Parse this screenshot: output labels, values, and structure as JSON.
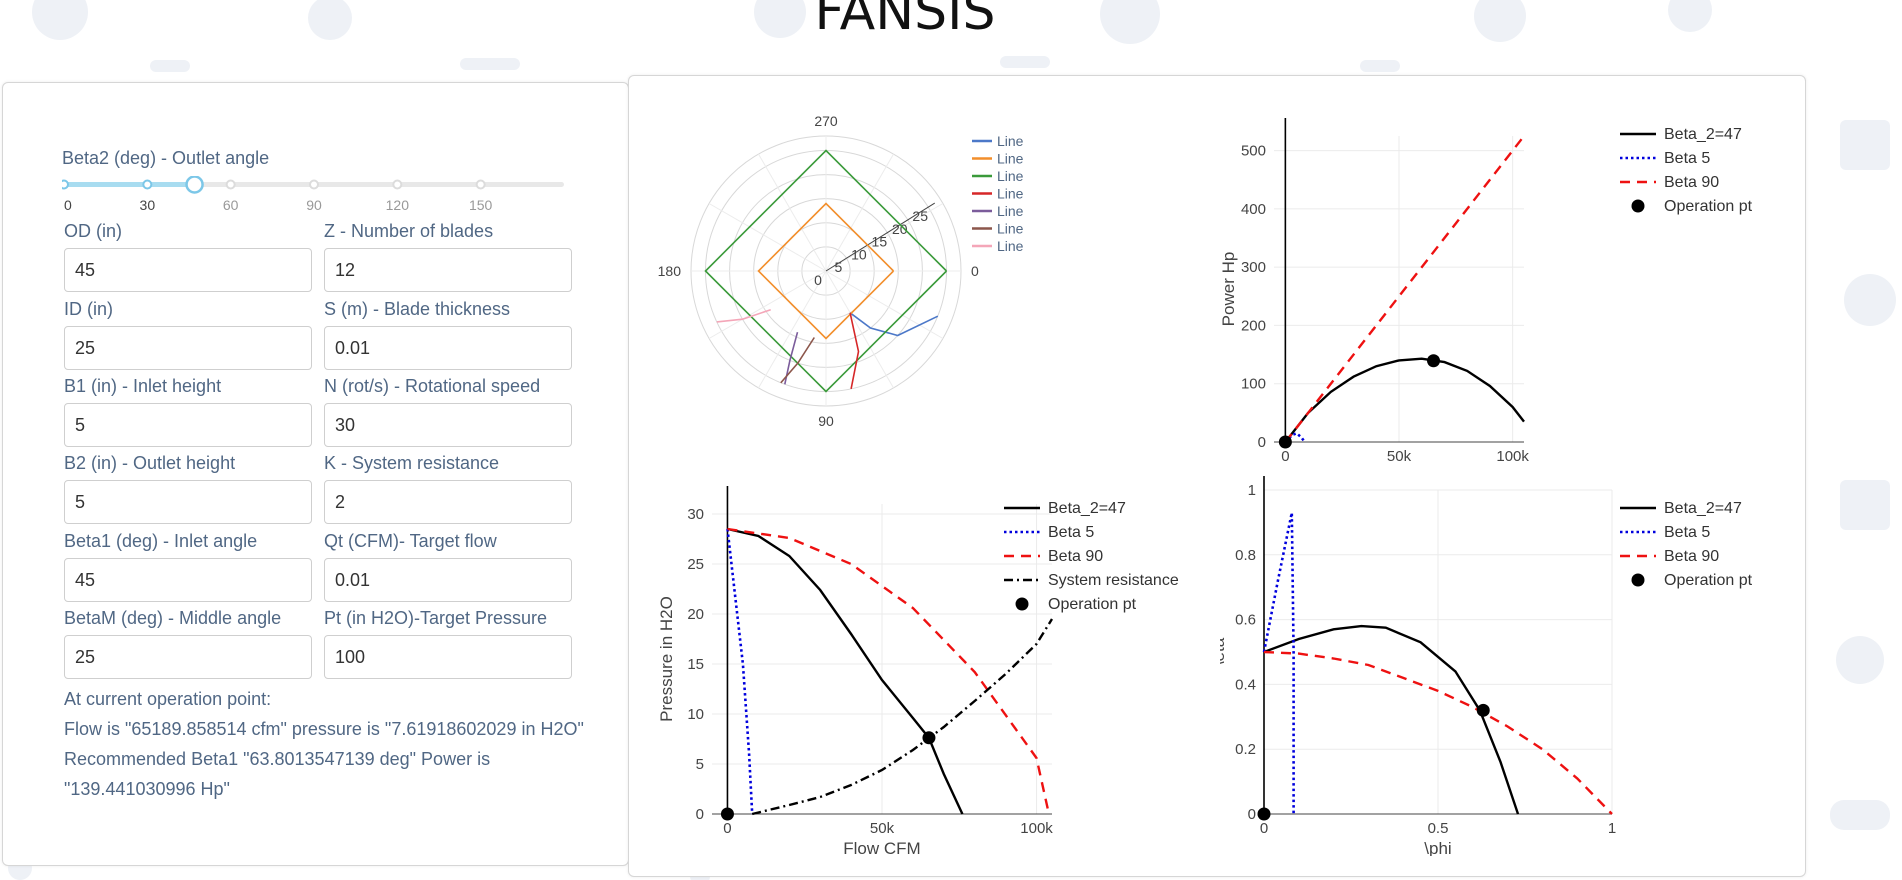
{
  "app": {
    "title": "FANSIS"
  },
  "slider": {
    "label": "Beta2 (deg) - Outlet angle",
    "min": 0,
    "max": 180,
    "value": 47,
    "marks": [
      "0",
      "30",
      "60",
      "90",
      "120",
      "150"
    ],
    "mark_values": [
      0,
      30,
      60,
      90,
      120,
      150
    ]
  },
  "fields": {
    "od": {
      "label": "OD (in)",
      "value": "45"
    },
    "z": {
      "label": "Z - Number of blades",
      "value": "12"
    },
    "id": {
      "label": "ID (in)",
      "value": "25"
    },
    "s": {
      "label": "S (m) - Blade thickness",
      "value": "0.01"
    },
    "b1": {
      "label": "B1 (in) - Inlet height",
      "value": "5"
    },
    "n": {
      "label": "N (rot/s) - Rotational speed",
      "value": "30"
    },
    "b2": {
      "label": "B2 (in) - Outlet height",
      "value": "5"
    },
    "k": {
      "label": "K - System resistance",
      "value": "2"
    },
    "beta1": {
      "label": "Beta1 (deg) - Inlet angle",
      "value": "45"
    },
    "qt": {
      "label": "Qt (CFM)- Target flow",
      "value": "0.01"
    },
    "betam": {
      "label": "BetaM (deg) - Middle angle",
      "value": "25"
    },
    "pt": {
      "label": "Pt (in H2O)-Target Pressure",
      "value": "100"
    }
  },
  "result": {
    "heading": "At current operation point:",
    "text": "Flow is \"65189.858514 cfm\" pressure is \"7.61918602029 in H2O\" Recommended Beta1 \"63.8013547139 deg\" Power is \"139.441030996 Hp\""
  },
  "colors": {
    "label": "#506784",
    "slider": "#a8dcf0",
    "slider_handle": "#7cc7e8",
    "black": "#000000",
    "blue": "#0000dd",
    "red": "#ee1111",
    "polar": [
      "#4c78c8",
      "#f28e2b",
      "#3a9a3a",
      "#d62728",
      "#7b5c9b",
      "#8c564b",
      "#f4a6b8"
    ]
  },
  "chart_data": [
    {
      "type": "polar",
      "angular_ticks": [
        "0",
        "90",
        "180",
        "270"
      ],
      "radial_ticks": [
        "0",
        "5",
        "10",
        "15",
        "20",
        "25"
      ],
      "radial_range": [
        0,
        28
      ],
      "legend": "right",
      "series": [
        {
          "name": "Line",
          "points": [
            [
              10,
              60
            ],
            [
              15,
              52
            ],
            [
              20,
              42
            ],
            [
              25,
              22
            ]
          ]
        },
        {
          "name": "Line",
          "points": [
            [
              14,
              0
            ],
            [
              14,
              90
            ],
            [
              14,
              180
            ],
            [
              14,
              270
            ],
            [
              14,
              360
            ]
          ]
        },
        {
          "name": "Line",
          "points": [
            [
              25,
              0
            ],
            [
              25,
              90
            ],
            [
              25,
              180
            ],
            [
              25,
              270
            ],
            [
              25,
              360
            ]
          ]
        },
        {
          "name": "Line",
          "points": [
            [
              10,
              60
            ],
            [
              18,
              68
            ],
            [
              25,
              78
            ]
          ]
        },
        {
          "name": "Line",
          "points": [
            [
              14,
              115
            ],
            [
              20,
              112
            ],
            [
              25,
              110
            ]
          ]
        },
        {
          "name": "Line",
          "points": [
            [
              14,
              100
            ],
            [
              20,
              107
            ],
            [
              25,
              112
            ]
          ]
        },
        {
          "name": "Line",
          "points": [
            [
              14,
              145
            ],
            [
              20,
              150
            ],
            [
              25,
              155
            ]
          ]
        }
      ]
    },
    {
      "type": "line",
      "xlabel": "",
      "ylabel": "Power Hp",
      "xlim": [
        -5000,
        105000
      ],
      "ylim": [
        0,
        525
      ],
      "x_ticks": [
        0,
        50000,
        100000
      ],
      "x_tick_labels": [
        "0",
        "50k",
        "100k"
      ],
      "y_ticks": [
        0,
        100,
        200,
        300,
        400,
        500
      ],
      "y_tick_labels": [
        "0",
        "100",
        "200",
        "300",
        "400",
        "500"
      ],
      "legend": "right",
      "series": [
        {
          "name": "Beta_2=47",
          "style": "solid",
          "color": "#000000",
          "x": [
            0,
            10000,
            20000,
            30000,
            40000,
            50000,
            60000,
            70000,
            80000,
            90000,
            100000,
            105000
          ],
          "y": [
            0,
            50,
            86,
            112,
            130,
            140,
            143,
            137,
            122,
            96,
            60,
            35
          ]
        },
        {
          "name": "Beta 5",
          "style": "dotted",
          "color": "#0000dd",
          "x": [
            0,
            3000,
            5000,
            7000,
            8500
          ],
          "y": [
            0,
            12,
            15,
            8,
            0
          ]
        },
        {
          "name": "Beta 90",
          "style": "dashed",
          "color": "#ee1111",
          "x": [
            0,
            105000
          ],
          "y": [
            0,
            525
          ]
        },
        {
          "name": "Operation pt",
          "style": "marker",
          "color": "#000000",
          "x": [
            0,
            65189.86
          ],
          "y": [
            0,
            139.44
          ]
        }
      ]
    },
    {
      "type": "line",
      "xlabel": "Flow CFM",
      "ylabel": "Pressure in H2O",
      "xlim": [
        -5000,
        105000
      ],
      "ylim": [
        0,
        31
      ],
      "x_ticks": [
        0,
        50000,
        100000
      ],
      "x_tick_labels": [
        "0",
        "50k",
        "100k"
      ],
      "y_ticks": [
        0,
        5,
        10,
        15,
        20,
        25,
        30
      ],
      "y_tick_labels": [
        "0",
        "5",
        "10",
        "15",
        "20",
        "25",
        "30"
      ],
      "legend": "right",
      "series": [
        {
          "name": "Beta_2=47",
          "style": "solid",
          "color": "#000000",
          "x": [
            0,
            10000,
            20000,
            30000,
            40000,
            50000,
            60000,
            65190,
            70000,
            76000
          ],
          "y": [
            28.5,
            27.8,
            25.8,
            22.4,
            18.0,
            13.4,
            9.6,
            7.6,
            4.0,
            0
          ]
        },
        {
          "name": "Beta 5",
          "style": "dotted",
          "color": "#0000dd",
          "x": [
            0,
            5000,
            7000,
            8000
          ],
          "y": [
            28.5,
            15,
            6,
            0
          ]
        },
        {
          "name": "Beta 90",
          "style": "dashed",
          "color": "#ee1111",
          "x": [
            0,
            20000,
            40000,
            60000,
            80000,
            100000,
            104000
          ],
          "y": [
            28.5,
            27.6,
            25.0,
            20.6,
            14.2,
            5.6,
            0
          ]
        },
        {
          "name": "System resistance",
          "style": "dashdot",
          "color": "#000000",
          "x": [
            8000,
            20000,
            30000,
            40000,
            50000,
            60000,
            70000,
            80000,
            90000,
            100000,
            105000
          ],
          "y": [
            0,
            0.9,
            1.7,
            2.9,
            4.4,
            6.4,
            8.7,
            11.3,
            14.0,
            17.0,
            19.5
          ]
        },
        {
          "name": "Operation pt",
          "style": "marker",
          "color": "#000000",
          "x": [
            0,
            65189.86
          ],
          "y": [
            0,
            7.62
          ]
        }
      ]
    },
    {
      "type": "line",
      "xlabel": "\\phi",
      "ylabel": "\\eta",
      "xlim": [
        0,
        1
      ],
      "ylim": [
        0,
        1
      ],
      "x_ticks": [
        0,
        0.5,
        1
      ],
      "x_tick_labels": [
        "0",
        "0.5",
        "1"
      ],
      "y_ticks": [
        0,
        0.2,
        0.4,
        0.6,
        0.8,
        1
      ],
      "y_tick_labels": [
        "0",
        "0.2",
        "0.4",
        "0.6",
        "0.8",
        "1"
      ],
      "legend": "right",
      "series": [
        {
          "name": "Beta_2=47",
          "style": "solid",
          "color": "#000000",
          "x": [
            0,
            0.1,
            0.2,
            0.28,
            0.35,
            0.45,
            0.55,
            0.62,
            0.68,
            0.73
          ],
          "y": [
            0.5,
            0.54,
            0.57,
            0.58,
            0.575,
            0.53,
            0.44,
            0.32,
            0.16,
            0
          ]
        },
        {
          "name": "Beta 5",
          "style": "dotted",
          "color": "#0000dd",
          "x": [
            0,
            0.04,
            0.08,
            0.085,
            0.085
          ],
          "y": [
            0.5,
            0.72,
            0.93,
            0.5,
            0
          ]
        },
        {
          "name": "Beta 90",
          "style": "dashed",
          "color": "#ee1111",
          "x": [
            0,
            0.1,
            0.2,
            0.3,
            0.4,
            0.5,
            0.6,
            0.7,
            0.8,
            0.9,
            1.0
          ],
          "y": [
            0.5,
            0.495,
            0.48,
            0.46,
            0.42,
            0.38,
            0.33,
            0.27,
            0.2,
            0.11,
            0
          ]
        },
        {
          "name": "Operation pt",
          "style": "marker",
          "color": "#000000",
          "x": [
            0,
            0.63
          ],
          "y": [
            0,
            0.32
          ]
        }
      ]
    }
  ]
}
